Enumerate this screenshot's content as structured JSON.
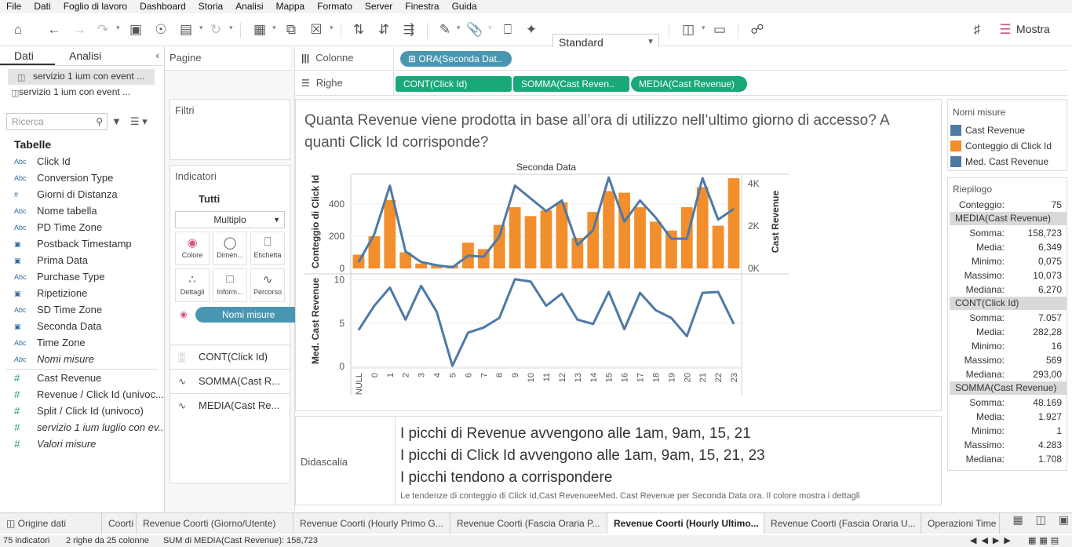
{
  "menu": [
    "File",
    "Dati",
    "Foglio di lavoro",
    "Dashboard",
    "Storia",
    "Analisi",
    "Mappa",
    "Formato",
    "Server",
    "Finestra",
    "Guida"
  ],
  "toolbar": {
    "standard_select": "Standard",
    "mostra": "Mostra"
  },
  "left": {
    "tab_data": "Dati",
    "tab_analysis": "Analisi",
    "datasources": [
      "servizio 1 ium con event ...",
      "servizio 1 ium con event ..."
    ],
    "search_placeholder": "Ricerca",
    "tables_heading": "Tabelle",
    "dimensions": [
      {
        "type": "Abc",
        "name": "Click Id"
      },
      {
        "type": "Abc",
        "name": "Conversion Type"
      },
      {
        "type": "#",
        "name": "Giorni di Distanza"
      },
      {
        "type": "Abc",
        "name": "Nome tabella"
      },
      {
        "type": "Abc",
        "name": "PD Time Zone"
      },
      {
        "type": "cal",
        "name": "Postback Timestamp"
      },
      {
        "type": "cal",
        "name": "Prima Data"
      },
      {
        "type": "Abc",
        "name": "Purchase Type"
      },
      {
        "type": "cal",
        "name": "Ripetizione"
      },
      {
        "type": "Abc",
        "name": "SD Time Zone"
      },
      {
        "type": "cal",
        "name": "Seconda Data"
      },
      {
        "type": "Abc",
        "name": "Time Zone"
      },
      {
        "type": "Abc",
        "name": "Nomi misure"
      }
    ],
    "measures": [
      {
        "type": "#",
        "name": "Cast Revenue"
      },
      {
        "type": "#",
        "name": "Revenue / Click Id (univoc..."
      },
      {
        "type": "#",
        "name": "Split / Click Id (univoco)"
      },
      {
        "type": "#",
        "name": "servizio 1 ium luglio con ev..."
      },
      {
        "type": "#",
        "name": "Valori misure"
      }
    ]
  },
  "cards": {
    "pages": "Pagine",
    "filters": "Filtri",
    "marks": "Indicatori",
    "all": "Tutti",
    "mark_type": "Multiplo",
    "buttons": [
      "Colore",
      "Dimen...",
      "Etichetta",
      "Dettagli",
      "Inform...",
      "Percorso"
    ],
    "nomi_pill": "Nomi misure",
    "mark_rows": [
      "CONT(Click Id)",
      "SOMMA(Cast R...",
      "MEDIA(Cast Re..."
    ]
  },
  "shelves": {
    "columns_label": "Colonne",
    "rows_label": "Righe",
    "columns_pills": [
      "ORA(Seconda Dat.."
    ],
    "rows_pills": [
      "CONT(Click Id)",
      "SOMMA(Cast Reven..",
      "MEDIA(Cast Revenue)"
    ]
  },
  "viz": {
    "title": "Quanta Revenue viene prodotta in base all’ora di utilizzo nell’ultimo giorno di accesso? A quanti Click Id corrisponde?"
  },
  "caption": {
    "label": "Didascalia",
    "lines": [
      "I picchi di Revenue avvengono alle 1am, 9am, 15, 21",
      "I picchi di Click Id avvengono alle 1am, 9am, 15, 21, 23",
      "I picchi tendono a corrispondere"
    ],
    "small": "Le tendenze di conteggio di Click Id,Cast RevenueeMed. Cast Revenue per Seconda Data ora. Il colore mostra i dettagli"
  },
  "legend": {
    "title": "Nomi misure",
    "items": [
      {
        "label": "Cast Revenue",
        "color": "#4e79a7"
      },
      {
        "label": "Conteggio di Click Id",
        "color": "#f28e2b"
      },
      {
        "label": "Med. Cast Revenue",
        "color": "#4e79a7"
      }
    ]
  },
  "summary": {
    "title": "Riepilogo",
    "count_label": "Conteggio:",
    "count_value": "75",
    "sections": [
      {
        "header": "MEDIA(Cast Revenue)",
        "rows": [
          [
            "Somma:",
            "158,723"
          ],
          [
            "Media:",
            "6,349"
          ],
          [
            "Minimo:",
            "0,075"
          ],
          [
            "Massimo:",
            "10,073"
          ],
          [
            "Mediana:",
            "6,270"
          ]
        ]
      },
      {
        "header": "CONT(Click Id)",
        "rows": [
          [
            "Somma:",
            "7.057"
          ],
          [
            "Media:",
            "282,28"
          ],
          [
            "Minimo:",
            "16"
          ],
          [
            "Massimo:",
            "569"
          ],
          [
            "Mediana:",
            "293,00"
          ]
        ]
      },
      {
        "header": "SOMMA(Cast Revenue)",
        "rows": [
          [
            "Somma:",
            "48.169"
          ],
          [
            "Media:",
            "1.927"
          ],
          [
            "Minimo:",
            "1"
          ],
          [
            "Massimo:",
            "4.283"
          ],
          [
            "Mediana:",
            "1.708"
          ]
        ]
      }
    ]
  },
  "bottom_tabs": [
    {
      "label": "Origine dati",
      "active": false
    },
    {
      "label": "Coorti",
      "active": false
    },
    {
      "label": "Revenue Coorti (Giorno/Utente)",
      "active": false
    },
    {
      "label": "Revenue Coorti (Hourly Primo G...",
      "active": false
    },
    {
      "label": "Revenue Coorti (Fascia Oraria P...",
      "active": false
    },
    {
      "label": "Revenue Coorti (Hourly Ultimo...",
      "active": true
    },
    {
      "label": "Revenue Coorti (Fascia Oraria U...",
      "active": false
    },
    {
      "label": "Operazioni Time",
      "active": false
    }
  ],
  "status": {
    "indicators": "75 indicatori",
    "rows_cols": "2 righe da 25 colonne",
    "sum": "SUM di MEDIA(Cast Revenue): 158,723"
  },
  "chart_data": {
    "type": "bar",
    "title": "Seconda Data",
    "categories": [
      "NULL",
      "0",
      "1",
      "2",
      "3",
      "4",
      "5",
      "6",
      "7",
      "8",
      "9",
      "10",
      "11",
      "12",
      "13",
      "14",
      "15",
      "16",
      "17",
      "18",
      "19",
      "20",
      "21",
      "22",
      "23"
    ],
    "series": [
      {
        "name": "Conteggio di Click Id",
        "axis": "top-left",
        "type": "bar",
        "color": "#f28e2b",
        "values": [
          85,
          200,
          425,
          100,
          30,
          20,
          18,
          160,
          120,
          270,
          380,
          325,
          360,
          410,
          190,
          350,
          480,
          470,
          380,
          290,
          235,
          380,
          505,
          265,
          560
        ]
      },
      {
        "name": "Cast Revenue",
        "axis": "top-right",
        "type": "line",
        "color": "#4e79a7",
        "values": [
          300,
          1600,
          3900,
          800,
          300,
          150,
          50,
          600,
          550,
          1500,
          3900,
          3300,
          2700,
          3200,
          1100,
          1800,
          4280,
          2200,
          3200,
          2400,
          1400,
          1400,
          4250,
          2300,
          2800
        ]
      },
      {
        "name": "Med. Cast Revenue",
        "axis": "bottom",
        "type": "line",
        "color": "#4e79a7",
        "values": [
          4.2,
          7.0,
          9.1,
          5.4,
          9.3,
          6.3,
          0.075,
          3.9,
          4.5,
          5.6,
          10.07,
          9.8,
          7.0,
          8.4,
          5.4,
          4.9,
          8.6,
          4.3,
          8.5,
          6.5,
          5.6,
          3.5,
          8.5,
          8.6,
          4.9
        ]
      }
    ],
    "ylabel_top_left": "Conteggio di Click Id",
    "ylabel_top_right": "Cast Revenue",
    "ylabel_bottom": "Med. Cast Revenue",
    "ylim_top_left": [
      0,
      580
    ],
    "ylim_top_right": [
      0,
      4400
    ],
    "ylim_bottom": [
      0,
      10.5
    ],
    "ticks_top_left": [
      "0",
      "200",
      "400"
    ],
    "ticks_top_right": [
      "0K",
      "2K",
      "4K"
    ],
    "ticks_bottom": [
      "0",
      "5",
      "10"
    ]
  }
}
